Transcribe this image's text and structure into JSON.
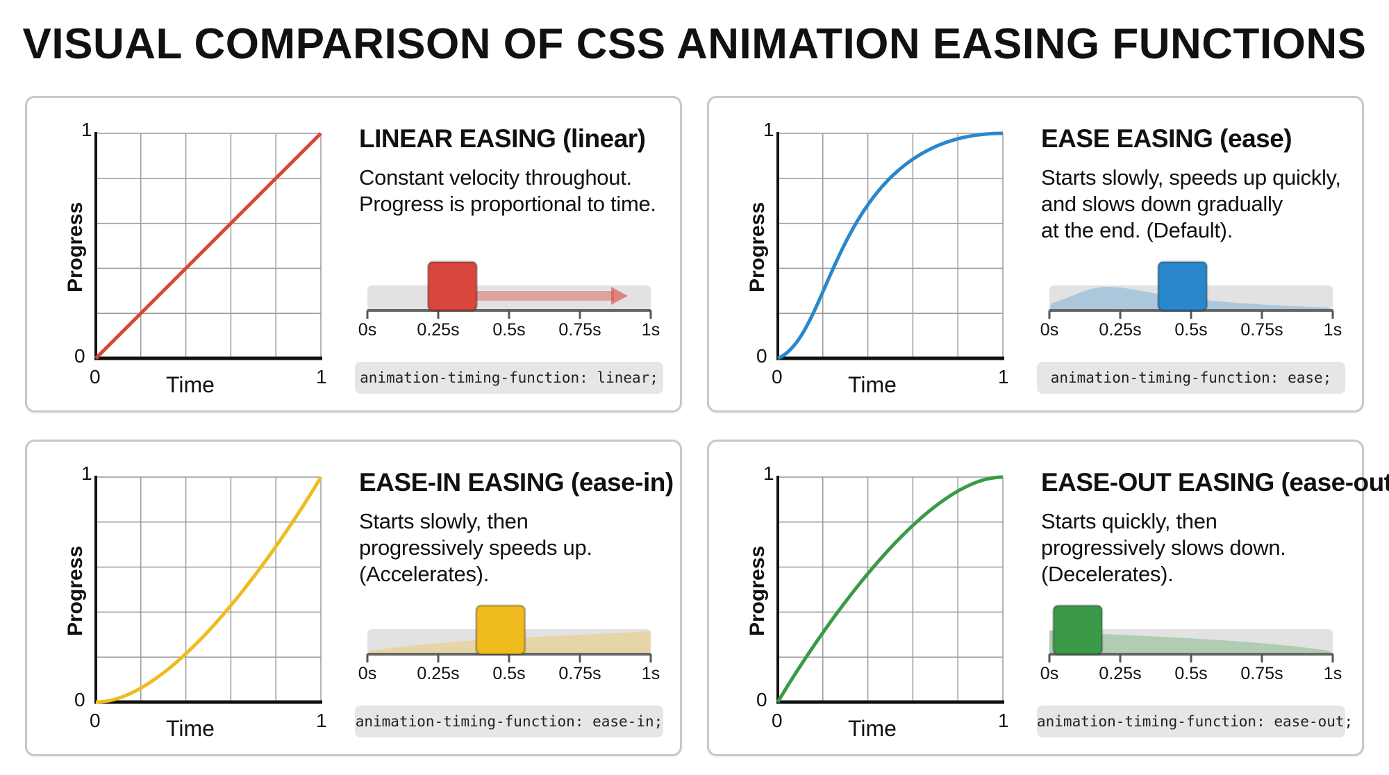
{
  "title": "VISUAL COMPARISON OF CSS ANIMATION EASING FUNCTIONS",
  "axis": {
    "x_label": "Time",
    "y_label": "Progress",
    "x_min": "0",
    "x_max": "1",
    "y_min": "0",
    "y_max": "1"
  },
  "timeline_ticks": [
    "0s",
    "0.25s",
    "0.5s",
    "0.75s",
    "1s"
  ],
  "panels": [
    {
      "id": "linear",
      "title": "LINEAR EASING (linear)",
      "description": [
        "Constant velocity throughout.",
        "Progress is proportional to time."
      ],
      "code": "animation-timing-function: linear;",
      "color": "#d9463b",
      "bezier": [
        0,
        0,
        1,
        1
      ],
      "marker_position": 0.3
    },
    {
      "id": "ease",
      "title": "EASE EASING (ease)",
      "description": [
        "Starts slowly, speeds up quickly,",
        "and slows down gradually",
        "at the end. (Default)."
      ],
      "code": "animation-timing-function: ease;",
      "color": "#2a87cc",
      "bezier": [
        0.25,
        0.1,
        0.25,
        1
      ],
      "marker_position": 0.47
    },
    {
      "id": "ease-in",
      "title": "EASE-IN EASING (ease-in)",
      "description": [
        "Starts slowly, then",
        "progressively speeds up.",
        "(Accelerates)."
      ],
      "code": "animation-timing-function: ease-in;",
      "color": "#f0bb1e",
      "bezier": [
        0.42,
        0,
        1,
        1
      ],
      "marker_position": 0.47
    },
    {
      "id": "ease-out",
      "title": "EASE-OUT EASING (ease-out)",
      "description": [
        "Starts quickly, then",
        "progressively slows down.",
        "(Decelerates)."
      ],
      "code": "animation-timing-function: ease-out;",
      "color": "#3a9a48",
      "bezier": [
        0,
        0,
        0.58,
        1
      ],
      "marker_position": 0.1
    }
  ]
}
